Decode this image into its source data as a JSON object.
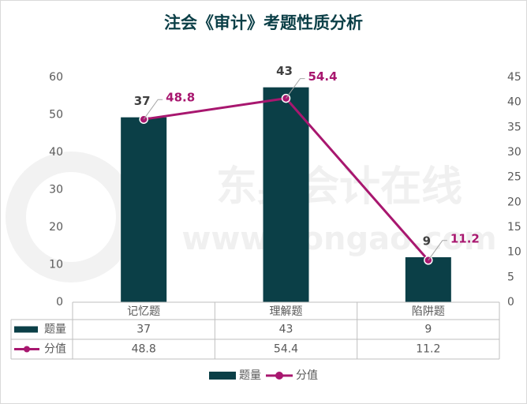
{
  "chart_data": {
    "type": "bar-line",
    "title": "注会《审计》考题性质分析",
    "watermark": [
      "东奥会计在线",
      "www.dongao.com"
    ],
    "categories": [
      "记忆题",
      "理解题",
      "陷阱题"
    ],
    "series": [
      {
        "name": "题量",
        "type": "bar",
        "axis": "y2",
        "color": "#0b3f47",
        "values": [
          37,
          43,
          9
        ]
      },
      {
        "name": "分值",
        "type": "line",
        "axis": "y",
        "color": "#a8176f",
        "values": [
          48.8,
          54.4,
          11.2
        ]
      }
    ],
    "ylim": [
      0,
      60
    ],
    "yticks": [
      0,
      10,
      20,
      30,
      40,
      50,
      60
    ],
    "y2lim": [
      0,
      45
    ],
    "y2ticks": [
      0,
      5,
      10,
      15,
      20,
      25,
      30,
      35,
      40,
      45
    ],
    "data_table": true,
    "legend": "bottom"
  }
}
